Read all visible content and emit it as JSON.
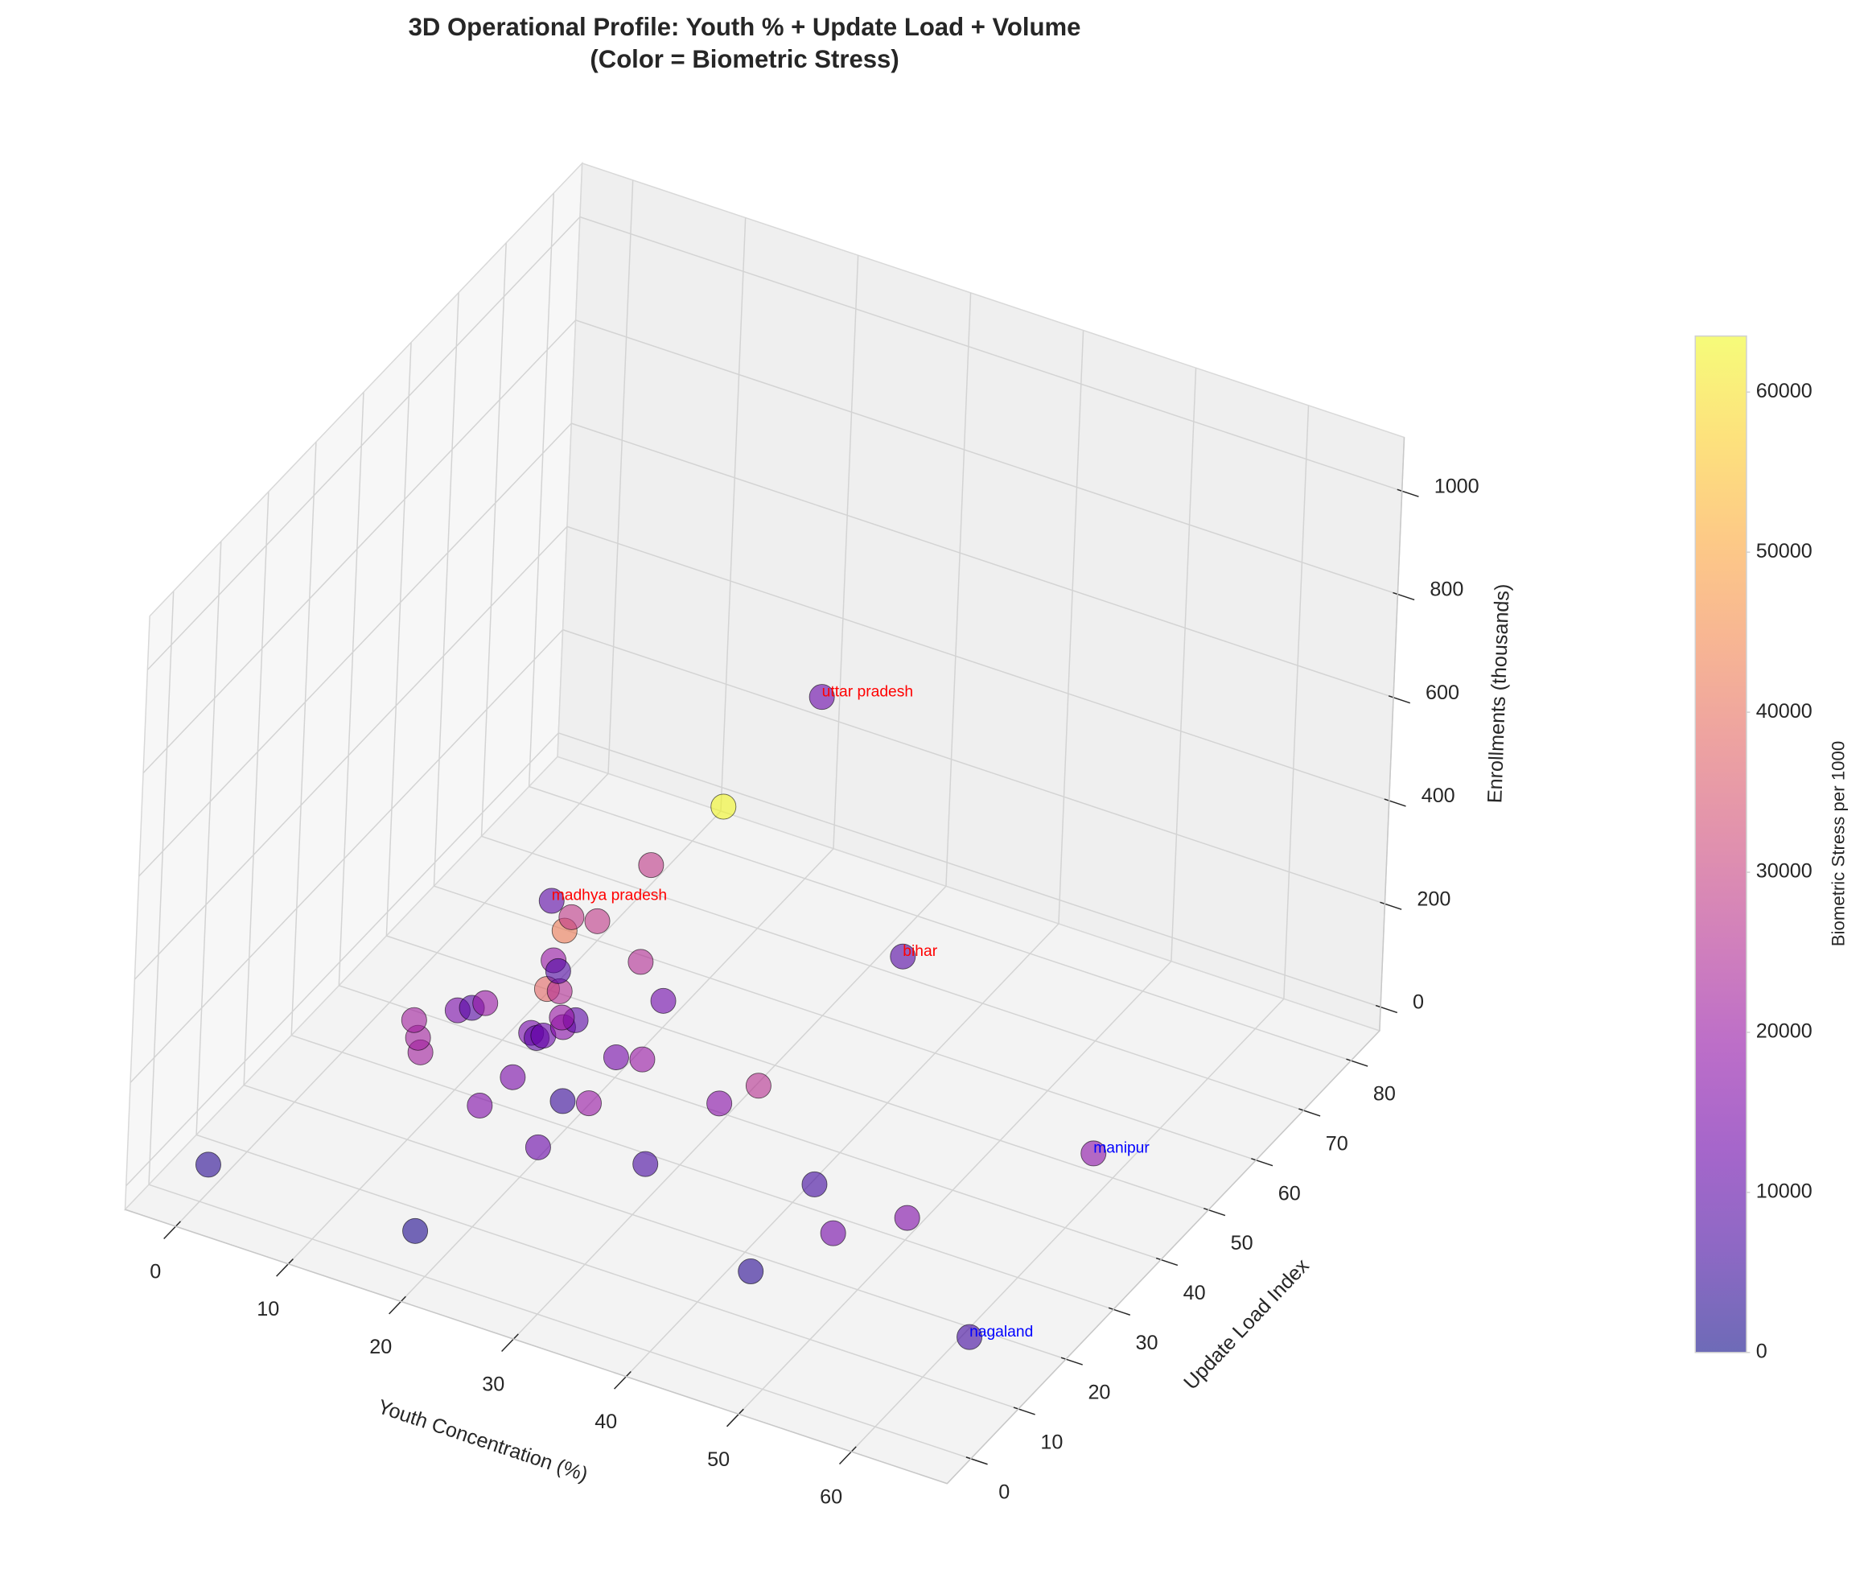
{
  "chart_data": {
    "type": "scatter3d",
    "title": "3D Operational Profile: Youth % + Update Load + Volume",
    "subtitle": "(Color = Biometric Stress)",
    "xlabel": "Youth Concentration (%)",
    "ylabel": "Update Load Index",
    "zlabel": "Enrollments (thousands)",
    "colorbar_label": "Biometric Stress per 1000",
    "colormap": "plasma",
    "alpha": 0.6,
    "x": [
      0,
      18.2,
      43.4,
      62.2,
      58.9,
      50.5,
      46.5,
      42.1,
      29.4,
      21.1,
      20.1,
      22.0,
      14.8,
      15.2,
      30.8,
      32.3,
      21.2,
      23.1,
      7.7,
      6.6,
      5.2,
      7.5,
      8.3,
      8.9,
      13.9,
      14.6,
      14.9,
      16.0,
      16.4,
      15.3,
      13.1,
      14.1,
      21.7,
      18.3,
      11.7,
      12.7,
      11.8,
      11.4,
      13.4,
      10.6,
      15.0,
      17.7,
      26.8,
      42.6
    ],
    "y": [
      1.6,
      2.0,
      12.9,
      14.4,
      48.3,
      29.0,
      22.9,
      29.4,
      23.9,
      21.0,
      28.5,
      29.5,
      23.6,
      29.6,
      36.1,
      40.8,
      37.1,
      38.1,
      27.9,
      30.0,
      32.5,
      36.2,
      37.3,
      38.7,
      36.5,
      36.0,
      36.7,
      38.2,
      39.9,
      39.6,
      41.6,
      41.9,
      45.7,
      48.9,
      46.3,
      44.9,
      48.2,
      50.6,
      51.3,
      48.1,
      58.6,
      67.2,
      65.0,
      45.5
    ],
    "z": [
      10,
      10,
      10,
      5,
      10,
      10,
      10,
      10,
      10,
      10,
      20,
      20,
      20,
      20,
      20,
      20,
      30,
      30,
      30,
      30,
      30,
      30,
      30,
      30,
      30,
      30,
      30,
      40,
      40,
      40,
      60,
      60,
      60,
      80,
      60,
      60,
      100,
      100,
      100,
      150,
      150,
      200,
      500,
      300
    ],
    "color_values": [
      3000,
      2000,
      3000,
      6000,
      18000,
      16000,
      14000,
      6000,
      7000,
      12000,
      5000,
      20000,
      16000,
      15000,
      17000,
      26000,
      14000,
      20000,
      22000,
      22000,
      22000,
      15000,
      9000,
      20000,
      14000,
      10000,
      12000,
      17000,
      10000,
      20000,
      38000,
      25000,
      13000,
      25000,
      20000,
      8000,
      42000,
      28000,
      28000,
      10000,
      28000,
      63000,
      12000,
      9000
    ],
    "labels": [
      null,
      null,
      null,
      "nagaland",
      "manipur",
      null,
      null,
      null,
      null,
      null,
      null,
      null,
      null,
      null,
      null,
      null,
      null,
      null,
      null,
      null,
      null,
      null,
      null,
      null,
      null,
      null,
      null,
      null,
      null,
      null,
      null,
      null,
      null,
      null,
      null,
      null,
      null,
      null,
      null,
      "madhya pradesh",
      null,
      null,
      "uttar pradesh",
      "bihar"
    ],
    "label_colors": [
      null,
      null,
      null,
      "blue",
      "blue",
      null,
      null,
      null,
      null,
      null,
      null,
      null,
      null,
      null,
      null,
      null,
      null,
      null,
      null,
      null,
      null,
      null,
      null,
      null,
      null,
      null,
      null,
      null,
      null,
      null,
      null,
      null,
      null,
      null,
      null,
      null,
      null,
      null,
      null,
      "red",
      null,
      null,
      "red",
      "red"
    ],
    "xlim": [
      -4.5,
      68.5
    ],
    "ylim": [
      -5,
      86
    ],
    "zlim": [
      -46,
      1104
    ],
    "xticks": [
      0,
      10,
      20,
      30,
      40,
      50,
      60
    ],
    "yticks": [
      0,
      10,
      20,
      30,
      40,
      50,
      60,
      70,
      80
    ],
    "zticks": [
      0,
      200,
      400,
      600,
      800,
      1000
    ],
    "clim": [
      0,
      63500
    ],
    "cticks": [
      0,
      10000,
      20000,
      30000,
      40000,
      50000,
      60000
    ],
    "grid": true
  }
}
